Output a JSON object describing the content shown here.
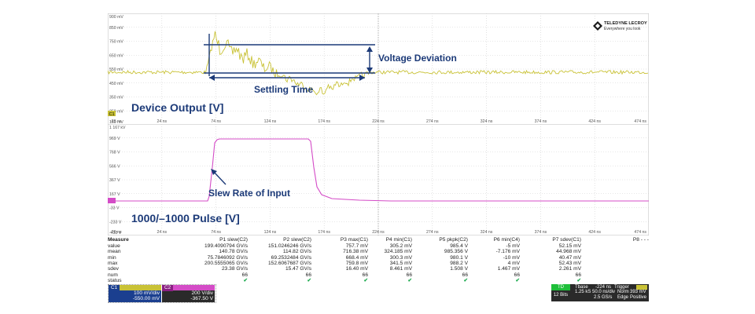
{
  "branding": {
    "company": "TELEDYNE LECROY",
    "tagline": "Everywhere you look"
  },
  "top_trace": {
    "y_labels": [
      "900 mV",
      "850 mV",
      "750 mV",
      "650 mV",
      "550 mV",
      "450 mV",
      "350 mV",
      "250 mV",
      "150 mV"
    ],
    "x_labels": [
      "-26 ns",
      "24 ns",
      "74 ns",
      "124 ns",
      "174 ns",
      "224 ns",
      "274 ns",
      "324 ns",
      "374 ns",
      "424 ns",
      "474 ns"
    ],
    "channel_marker": "C1",
    "title": "Device Output [V]",
    "annotations": {
      "voltage_deviation": "Voltage Deviation",
      "settling_time": "Settling Time"
    },
    "color": "#c9c236"
  },
  "bottom_trace": {
    "y_labels": [
      "1 167 kV",
      "969 V",
      "768 V",
      "566 V",
      "367 V",
      "167 V",
      "-33 V",
      "-233 V",
      "-433 V"
    ],
    "x_labels": [
      "-26 ns",
      "24 ns",
      "74 ns",
      "124 ns",
      "174 ns",
      "224 ns",
      "274 ns",
      "324 ns",
      "374 ns",
      "424 ns",
      "474 ns"
    ],
    "title": "1000/–1000 Pulse [V]",
    "annotations": {
      "slew_rate": "Slew Rate of Input"
    },
    "color": "#d44cc7"
  },
  "measure": {
    "title": "Measure",
    "row_labels": [
      "value",
      "mean",
      "min",
      "max",
      "sdev",
      "num",
      "status"
    ],
    "columns": [
      {
        "header": "P1 slew(C2)",
        "values": [
          "199.4090794 GV/s",
          "140.78 GV/s",
          "75.7846092 GV/s",
          "200.5555065 GV/s",
          "23.38 GV/s",
          "66"
        ]
      },
      {
        "header": "P2 slew(C2)",
        "values": [
          "151.0246246 GV/s",
          "114.82 GV/s",
          "69.2532484 GV/s",
          "152.6067687 GV/s",
          "15.47 GV/s",
          "66"
        ]
      },
      {
        "header": "P3 max(C1)",
        "values": [
          "757.7 mV",
          "716.38 mV",
          "668.4 mV",
          "759.8 mV",
          "16.40 mV",
          "66"
        ]
      },
      {
        "header": "P4 min(C1)",
        "values": [
          "305.2 mV",
          "324.185 mV",
          "300.3 mV",
          "341.5 mV",
          "8.461 mV",
          "66"
        ]
      },
      {
        "header": "P5 pkpk(C2)",
        "values": [
          "985.4 V",
          "985.356 V",
          "980.1 V",
          "988.2 V",
          "1.508 V",
          "66"
        ]
      },
      {
        "header": "P6 min(C4)",
        "values": [
          "-5 mV",
          "-7.176 mV",
          "-10 mV",
          "4 mV",
          "1.467 mV",
          "66"
        ]
      },
      {
        "header": "P7 sdev(C1)",
        "values": [
          "52.15 mV",
          "44.968 mV",
          "40.47 mV",
          "52.43 mV",
          "2.261 mV",
          "66"
        ]
      },
      {
        "header": "P8 - - -",
        "values": [
          "",
          "",
          "",
          "",
          "",
          ""
        ]
      }
    ],
    "status_check": "✔"
  },
  "channels": [
    {
      "tag": "C1",
      "scale": "100 mV/div",
      "offset": "-550.00 mV",
      "color": "#c9c236"
    },
    {
      "tag": "C2",
      "scale": "200 V/div",
      "offset": "-367.50 V",
      "color": "#d44cc7"
    }
  ],
  "timebase": {
    "tag": "TD",
    "tbase_label": "Tbase",
    "tbase_value": "-224 ns",
    "trigger_label": "Trigger",
    "div_value": "50.0 ns/div",
    "trig_mode": "Norm",
    "trig_level": "393 mV",
    "bits": "12 Bits",
    "samples": "1.25 kS",
    "rate": "2.5 GS/s",
    "edge": "Edge",
    "slope": "Positive"
  }
}
